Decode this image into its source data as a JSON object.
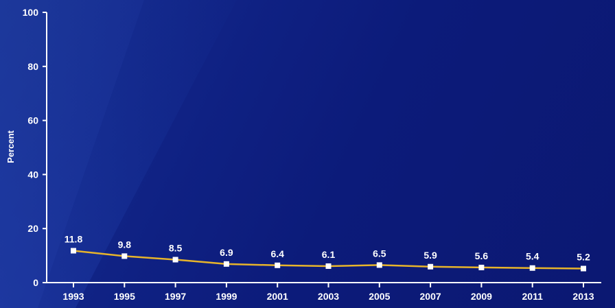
{
  "chart_data": {
    "type": "line",
    "ylabel": "Percent",
    "ylim": [
      0,
      100
    ],
    "yticks": [
      0,
      20,
      40,
      60,
      80,
      100
    ],
    "grid": false,
    "categories": [
      "1993",
      "1995",
      "1997",
      "1999",
      "2001",
      "2003",
      "2005",
      "2007",
      "2009",
      "2011",
      "2013"
    ],
    "series": [
      {
        "values": [
          11.8,
          9.8,
          8.5,
          6.9,
          6.4,
          6.1,
          6.5,
          5.9,
          5.6,
          5.4,
          5.2
        ],
        "labels": [
          "11.8",
          "9.8",
          "8.5",
          "6.9",
          "6.4",
          "6.1",
          "6.5",
          "5.9",
          "5.6",
          "5.4",
          "5.2"
        ],
        "line_color": "#e7b42b",
        "marker_color": "#ffffff"
      }
    ],
    "colors": {
      "background": "#0d1d7c",
      "axis": "#ffffff",
      "text": "#ffffff"
    }
  }
}
